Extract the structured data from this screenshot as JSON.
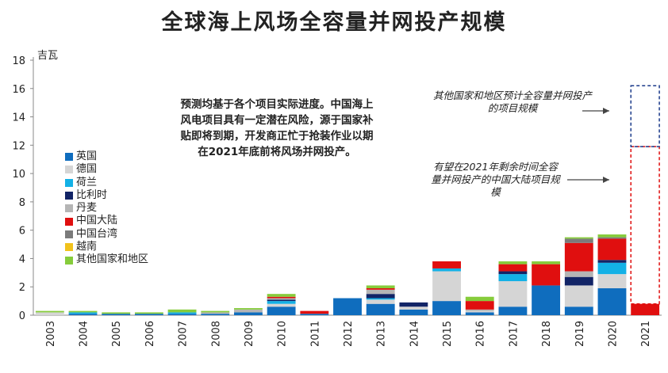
{
  "title": "全球海上风场全容量并网投产规模",
  "unit": "吉瓦",
  "note": "预测均基于各个项目实际进度。中国海上风电项目具有一定潜在风险，源于国家补贴即将到期，开发商正忙于抢装作业以期在2021年底前将风场并网投产。",
  "annotations": [
    "其他国家和地区预计全容量并网投产的项目规模",
    "有望在2021年剩余时间全容量并网投产的中国大陆项目规模"
  ],
  "chart_data": {
    "type": "bar",
    "stacked": true,
    "categories": [
      "2003",
      "2004",
      "2005",
      "2006",
      "2007",
      "2008",
      "2009",
      "2010",
      "2011",
      "2012",
      "2013",
      "2014",
      "2015",
      "2016",
      "2017",
      "2018",
      "2019",
      "2020",
      "2021"
    ],
    "ylim": [
      0,
      18
    ],
    "yticks": [
      0,
      2,
      4,
      6,
      8,
      10,
      12,
      14,
      16,
      18
    ],
    "series": [
      {
        "name": "英国",
        "color": "#0f6dbe",
        "values": [
          0,
          0.1,
          0.1,
          0.1,
          0.1,
          0.1,
          0.2,
          0.6,
          0.1,
          1.2,
          0.8,
          0.4,
          1.0,
          0.2,
          0.6,
          2.1,
          0.6,
          1.9,
          0
        ]
      },
      {
        "name": "德国",
        "color": "#d5d5d5",
        "values": [
          0.2,
          0,
          0,
          0,
          0,
          0,
          0,
          0.2,
          0,
          0,
          0.3,
          0.2,
          2.1,
          0.1,
          1.8,
          0,
          1.5,
          1.0,
          0
        ]
      },
      {
        "name": "荷兰",
        "color": "#13b1e6",
        "values": [
          0,
          0.1,
          0,
          0,
          0.1,
          0,
          0,
          0.2,
          0,
          0,
          0.1,
          0,
          0.2,
          0,
          0.5,
          0,
          0,
          0.8,
          0
        ]
      },
      {
        "name": "比利时",
        "color": "#122466",
        "values": [
          0,
          0,
          0,
          0,
          0,
          0,
          0,
          0.1,
          0,
          0,
          0.3,
          0.3,
          0,
          0,
          0.2,
          0,
          0.6,
          0.2,
          0
        ]
      },
      {
        "name": "丹麦",
        "color": "#b5b5b5",
        "values": [
          0,
          0,
          0,
          0,
          0,
          0.1,
          0.2,
          0.1,
          0,
          0,
          0.3,
          0,
          0,
          0.1,
          0,
          0,
          0.4,
          0,
          0
        ]
      },
      {
        "name": "中国大陆",
        "color": "#e00f0f",
        "values": [
          0,
          0,
          0,
          0,
          0,
          0,
          0,
          0.1,
          0.2,
          0,
          0.1,
          0,
          0.5,
          0.6,
          0.5,
          1.5,
          2.0,
          1.5,
          0.8
        ]
      },
      {
        "name": "中国台湾",
        "color": "#7b7b7b",
        "values": [
          0,
          0,
          0,
          0,
          0,
          0,
          0,
          0,
          0,
          0,
          0,
          0,
          0,
          0,
          0,
          0,
          0.3,
          0.1,
          0
        ]
      },
      {
        "name": "越南",
        "color": "#f1c21b",
        "values": [
          0,
          0,
          0,
          0,
          0,
          0,
          0,
          0,
          0,
          0,
          0,
          0,
          0,
          0,
          0,
          0,
          0,
          0,
          0
        ]
      },
      {
        "name": "其他国家和地区",
        "color": "#86cc3b",
        "values": [
          0.1,
          0.1,
          0.1,
          0.1,
          0.2,
          0.1,
          0.1,
          0.2,
          0,
          0,
          0.2,
          0,
          0,
          0.3,
          0.2,
          0.2,
          0.1,
          0.2,
          0
        ]
      }
    ],
    "forecast": [
      {
        "category": "2021",
        "from": 0.8,
        "to": 11.9,
        "color": "#e00f0f",
        "style": "dashed"
      },
      {
        "category": "2021",
        "from": 11.9,
        "to": 16.2,
        "color": "#1a3a8a",
        "style": "dashed"
      }
    ],
    "legend_position": "left"
  }
}
